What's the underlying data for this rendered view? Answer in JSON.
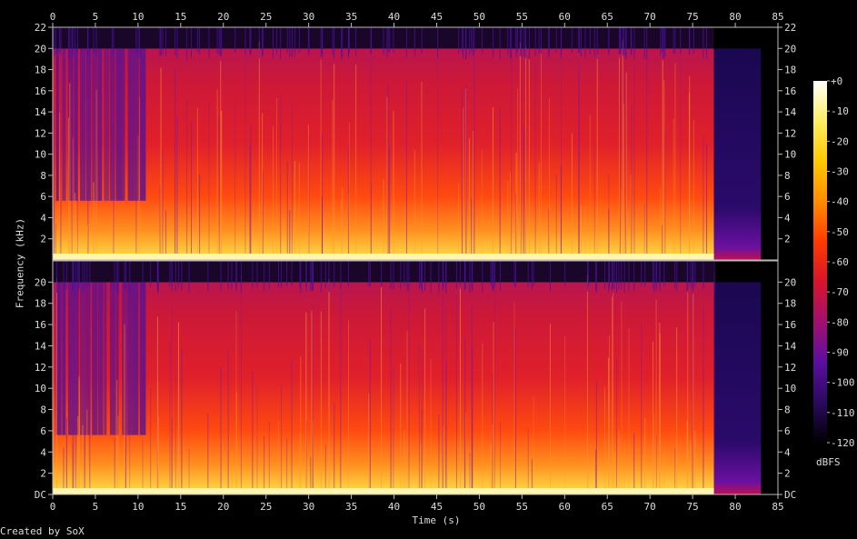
{
  "footer": {
    "credit": "Created by SoX"
  },
  "chart_data": {
    "type": "heatmap",
    "title": "",
    "xlabel": "Time (s)",
    "ylabel": "Frequency (kHz)",
    "colorbar_label": "dBFS",
    "x_ticks": [
      "0",
      "5",
      "10",
      "15",
      "20",
      "25",
      "30",
      "35",
      "40",
      "45",
      "50",
      "55",
      "60",
      "65",
      "70",
      "75",
      "80",
      "85"
    ],
    "xlim": [
      0,
      85
    ],
    "channels": [
      {
        "y_ticks": [
          "2",
          "4",
          "6",
          "8",
          "10",
          "12",
          "14",
          "16",
          "18",
          "20",
          "22"
        ],
        "ylim": [
          0,
          22
        ]
      },
      {
        "y_ticks": [
          "DC",
          "2",
          "4",
          "6",
          "8",
          "10",
          "12",
          "14",
          "16",
          "18",
          "20"
        ],
        "ylim": [
          0,
          22
        ]
      }
    ],
    "colorbar_ticks": [
      "+0",
      "-10",
      "-20",
      "-30",
      "-40",
      "-50",
      "-60",
      "-70",
      "-80",
      "-90",
      "-100",
      "-110",
      "-120"
    ],
    "colorbar_range": [
      -120,
      0
    ],
    "audio_end_s": 77.5,
    "signal_end_s": 83,
    "max_freq_khz": 20,
    "colormap": [
      "#000000",
      "#2a0a5e",
      "#5a0fa0",
      "#a01070",
      "#d8142c",
      "#ff3a00",
      "#ff8c00",
      "#ffc800",
      "#ffee60",
      "#ffffff"
    ]
  }
}
